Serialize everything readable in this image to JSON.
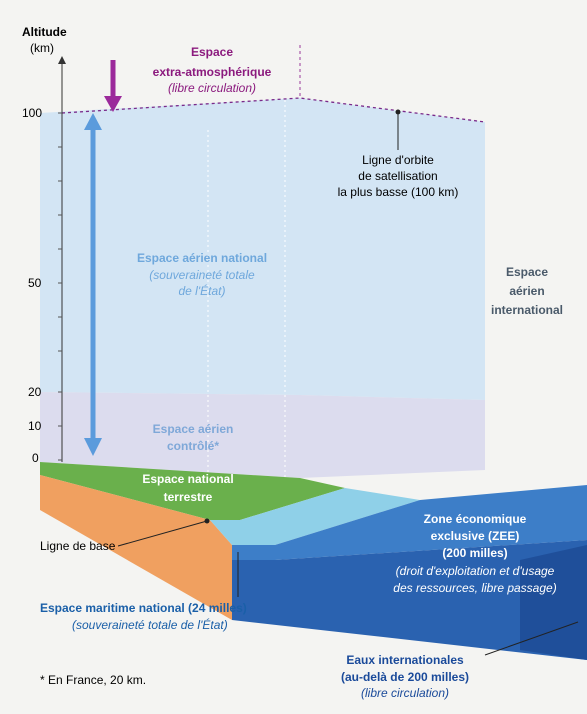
{
  "axis": {
    "title": [
      "Altitude",
      "(km)"
    ],
    "ticks": [
      "100",
      "50",
      "20",
      "10",
      "0"
    ]
  },
  "labels": {
    "outer_space": [
      "Espace",
      "extra-atmosphérique",
      "(libre circulation)"
    ],
    "orbit_line": [
      "Ligne d'orbite",
      "de satellisation",
      "la plus basse (100 km)"
    ],
    "national_airspace": [
      "Espace aérien national",
      "(souveraineté totale",
      "de l'État)"
    ],
    "international_airspace": [
      "Espace",
      "aérien",
      "international"
    ],
    "controlled_airspace": [
      "Espace aérien",
      "contrôlé*"
    ],
    "land": [
      "Espace national",
      "terrestre"
    ],
    "zee": [
      "Zone économique",
      "exclusive (ZEE)",
      "(200 milles)",
      "(droit d'exploitation et d'usage",
      "des ressources, libre passage)"
    ],
    "baseline": "Ligne de base",
    "maritime": [
      "Espace maritime national (24 milles)",
      "(souveraineté totale de l'État)"
    ],
    "international_waters": [
      "Eaux internationales",
      "(au-delà de 200 milles)",
      "(libre circulation)"
    ],
    "footnote": "* En France, 20 km."
  }
}
